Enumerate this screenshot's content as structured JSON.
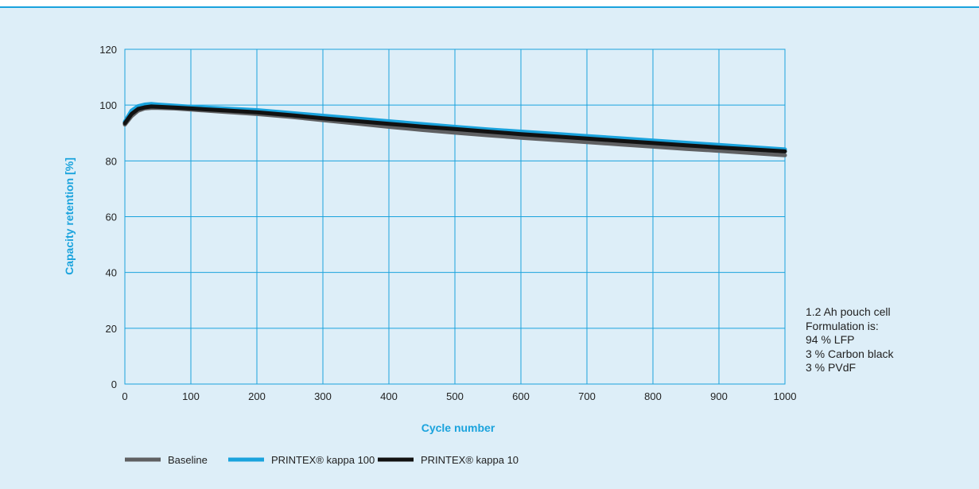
{
  "chart_data": {
    "type": "line",
    "xlabel": "Cycle number",
    "ylabel": "Capacity retention [%]",
    "xlim": [
      0,
      1000
    ],
    "ylim": [
      0,
      120
    ],
    "x_ticks": [
      0,
      100,
      200,
      300,
      400,
      500,
      600,
      700,
      800,
      900,
      1000
    ],
    "y_ticks": [
      0,
      20,
      40,
      60,
      80,
      100,
      120
    ],
    "grid": true,
    "legend_position": "bottom",
    "x": [
      0,
      10,
      20,
      30,
      40,
      50,
      75,
      100,
      150,
      200,
      250,
      300,
      350,
      400,
      450,
      500,
      550,
      600,
      650,
      700,
      750,
      800,
      850,
      900,
      950,
      1000
    ],
    "series": [
      {
        "name": "Baseline",
        "color": "#5f6062",
        "values": [
          93,
          96,
          98,
          98.8,
          99,
          99,
          98.8,
          98.4,
          97.6,
          96.8,
          95.8,
          94.6,
          93.4,
          92.2,
          91.1,
          90.1,
          89.2,
          88.3,
          87.5,
          86.7,
          85.9,
          85.1,
          84.3,
          83.6,
          82.8,
          82
        ]
      },
      {
        "name": "PRINTEX® kappa 100",
        "color": "#1aa3dd",
        "values": [
          94,
          98,
          99.6,
          100.2,
          100.4,
          100.2,
          99.8,
          99.4,
          98.8,
          98.2,
          97.2,
          96.2,
          95.2,
          94.2,
          93.2,
          92.2,
          91.3,
          90.5,
          89.7,
          88.9,
          88.1,
          87.3,
          86.5,
          85.7,
          84.9,
          84.1
        ]
      },
      {
        "name": "PRINTEX® kappa 10",
        "color": "#111111",
        "values": [
          93.5,
          96.8,
          98.6,
          99.2,
          99.5,
          99.4,
          99.1,
          98.8,
          98.1,
          97.4,
          96.4,
          95.3,
          94.3,
          93.3,
          92.3,
          91.4,
          90.5,
          89.6,
          88.8,
          88,
          87.2,
          86.4,
          85.6,
          84.8,
          84.1,
          83.4
        ]
      }
    ]
  },
  "notes": [
    "1.2 Ah pouch cell",
    "Formulation is:",
    "94 % LFP",
    "3 % Carbon black",
    "3 % PVdF"
  ]
}
